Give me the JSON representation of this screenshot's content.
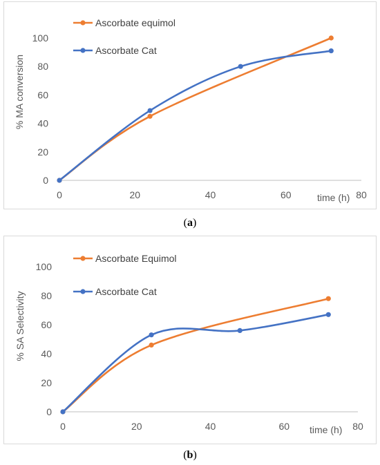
{
  "charts": [
    {
      "id": "a",
      "caption_left": "(",
      "caption_letter": "a",
      "caption_right": ")",
      "chart_data": {
        "type": "line",
        "title": "",
        "xlabel": "time (h)",
        "ylabel": "% MA conversion",
        "xlim": [
          0,
          80
        ],
        "ylim": [
          0,
          100
        ],
        "xticks": [
          "0",
          "20",
          "40",
          "60",
          "80"
        ],
        "yticks": [
          "0",
          "20",
          "40",
          "60",
          "80",
          "100"
        ],
        "grid": false,
        "legend_position": "top-left",
        "series": [
          {
            "name": "Ascorbate equimol",
            "color": "#ED7D31",
            "x": [
              0,
              24,
              72
            ],
            "y": [
              0,
              45,
              100
            ]
          },
          {
            "name": "Ascorbate Cat",
            "color": "#4472C4",
            "x": [
              0,
              24,
              48,
              72
            ],
            "y": [
              0,
              49,
              80,
              91
            ]
          }
        ]
      }
    },
    {
      "id": "b",
      "caption_left": "(",
      "caption_letter": "b",
      "caption_right": ")",
      "chart_data": {
        "type": "line",
        "title": "",
        "xlabel": "time (h)",
        "ylabel": "% SA Selectivity",
        "xlim": [
          0,
          80
        ],
        "ylim": [
          0,
          100
        ],
        "xticks": [
          "0",
          "20",
          "40",
          "60",
          "80"
        ],
        "yticks": [
          "0",
          "20",
          "40",
          "60",
          "80",
          "100"
        ],
        "grid": false,
        "legend_position": "top-left",
        "series": [
          {
            "name": "Ascorbate Equimol",
            "color": "#ED7D31",
            "x": [
              0,
              24,
              72
            ],
            "y": [
              0,
              46,
              78
            ]
          },
          {
            "name": "Ascorbate Cat",
            "color": "#4472C4",
            "x": [
              0,
              24,
              48,
              72
            ],
            "y": [
              0,
              53,
              56,
              67
            ]
          }
        ]
      }
    }
  ]
}
